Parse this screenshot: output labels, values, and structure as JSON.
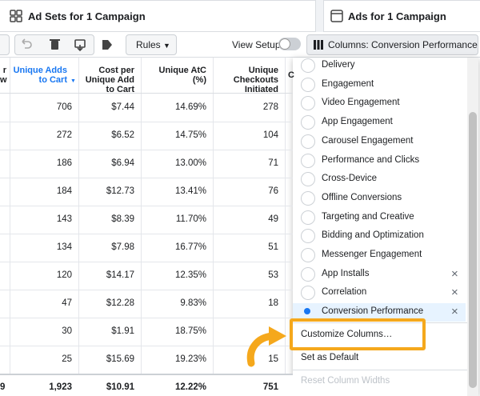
{
  "tabs": [
    "Ad Sets for 1 Campaign",
    "Ads for 1 Campaign"
  ],
  "toolbar": {
    "rules": "Rules",
    "view_setup": "View Setup",
    "columns": "Columns: Conversion Performance"
  },
  "table": {
    "cut_header_lines": [
      "r",
      "w"
    ],
    "cut_header_right": "C",
    "headers": [
      "Unique Adds to Cart",
      "Cost per Unique Add to Cart",
      "Unique AtC (%)",
      "Unique Checkouts Initiated"
    ],
    "rows": [
      [
        706,
        "$7.44",
        "14.69%",
        278
      ],
      [
        272,
        "$6.52",
        "14.75%",
        104
      ],
      [
        186,
        "$6.94",
        "13.00%",
        71
      ],
      [
        184,
        "$12.73",
        "13.41%",
        76
      ],
      [
        143,
        "$8.39",
        "11.70%",
        49
      ],
      [
        134,
        "$7.98",
        "16.77%",
        51
      ],
      [
        120,
        "$14.17",
        "12.35%",
        53
      ],
      [
        47,
        "$12.28",
        "9.83%",
        18
      ],
      [
        30,
        "$1.91",
        "18.75%",
        null
      ],
      [
        25,
        "$15.69",
        "19.23%",
        15
      ]
    ],
    "cut_total": "9",
    "total": [
      "1,923",
      "$10.91",
      "12.22%",
      751
    ]
  },
  "menu": {
    "presets": [
      {
        "label": "Delivery"
      },
      {
        "label": "Engagement"
      },
      {
        "label": "Video Engagement"
      },
      {
        "label": "App Engagement"
      },
      {
        "label": "Carousel Engagement"
      },
      {
        "label": "Performance and Clicks"
      },
      {
        "label": "Cross-Device"
      },
      {
        "label": "Offline Conversions"
      },
      {
        "label": "Targeting and Creative"
      },
      {
        "label": "Bidding and Optimization"
      },
      {
        "label": "Messenger Engagement"
      },
      {
        "label": "App Installs",
        "removable": true
      },
      {
        "label": "Correlation",
        "removable": true
      },
      {
        "label": "Conversion Performance",
        "removable": true,
        "selected": true
      }
    ],
    "actions": [
      "Customize Columns…",
      "Set as Default",
      "Reset Column Widths"
    ]
  }
}
